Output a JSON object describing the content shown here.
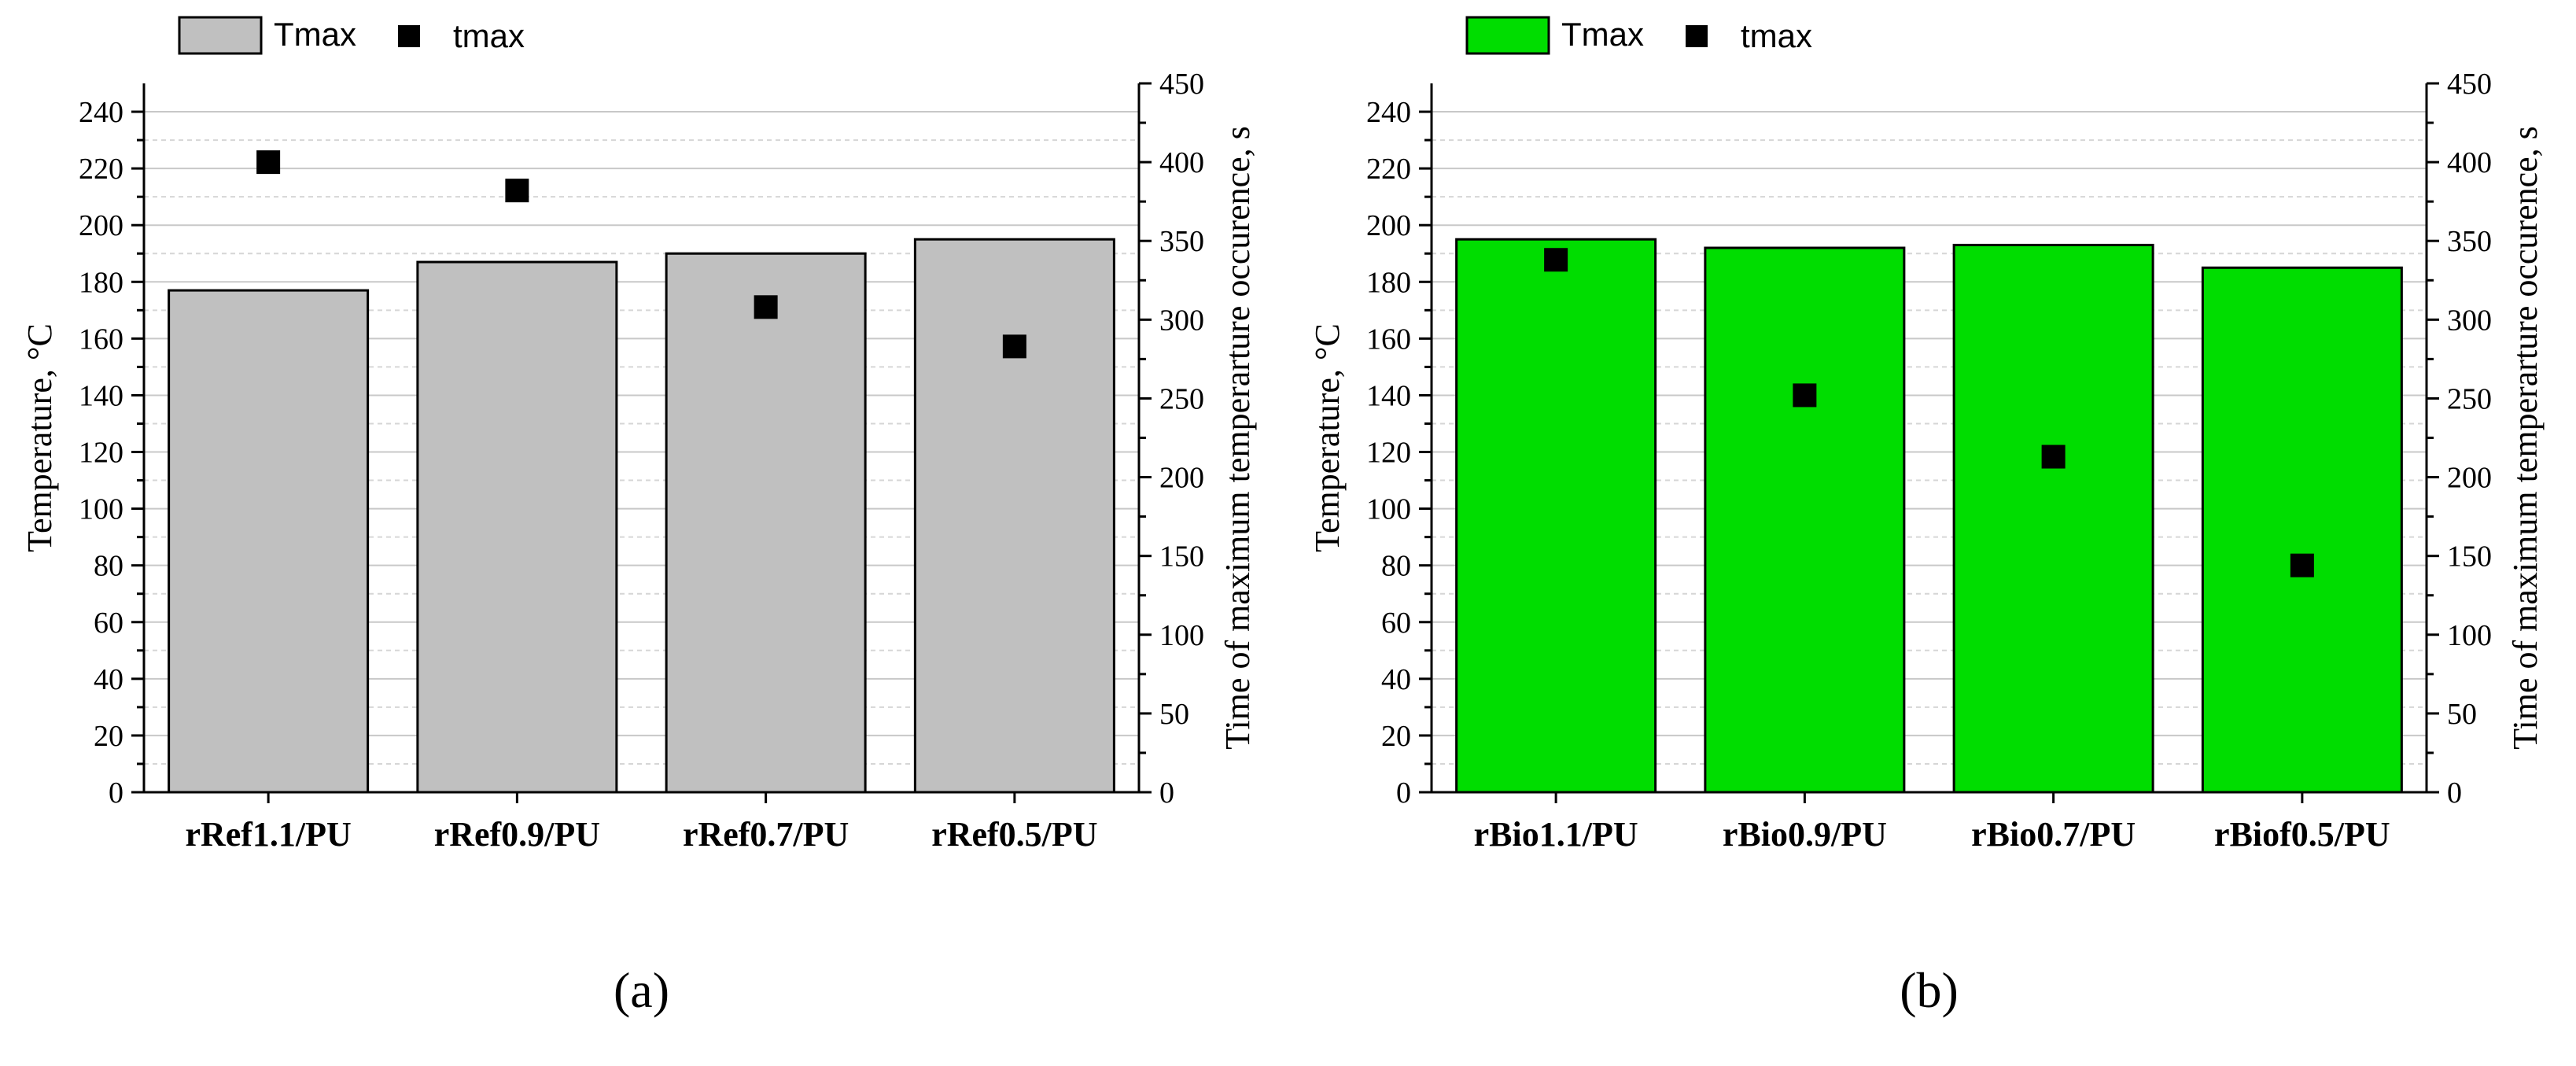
{
  "chart_data": [
    {
      "type": "bar",
      "panel_label": "(a)",
      "categories": [
        "rRef1.1/PU",
        "rRef0.9/PU",
        "rRef0.7/PU",
        "rRef0.5/PU"
      ],
      "series": [
        {
          "name": "Tmax",
          "kind": "bar",
          "axis": "left",
          "color": "#c0c0c0",
          "values": [
            177,
            187,
            190,
            195
          ]
        },
        {
          "name": "tmax",
          "kind": "scatter",
          "axis": "right",
          "color": "#000000",
          "values": [
            400,
            382,
            308,
            283
          ]
        }
      ],
      "ylabel": "Temperature, °C",
      "ylim": [
        0,
        250
      ],
      "yticks": [
        0,
        20,
        40,
        60,
        80,
        100,
        120,
        140,
        160,
        180,
        200,
        220,
        240
      ],
      "y2label": "Time of maximum temperarture occurence, s",
      "y2lim": [
        0,
        450
      ],
      "y2ticks": [
        0,
        50,
        100,
        150,
        200,
        250,
        300,
        350,
        400,
        450
      ],
      "legend_position": "top-left",
      "grid": true
    },
    {
      "type": "bar",
      "panel_label": "(b)",
      "categories": [
        "rBio1.1/PU",
        "rBio0.9/PU",
        "rBio0.7/PU",
        "rBiof0.5/PU"
      ],
      "series": [
        {
          "name": "Tmax",
          "kind": "bar",
          "axis": "left",
          "color": "#00dd00",
          "values": [
            195,
            192,
            193,
            185
          ]
        },
        {
          "name": "tmax",
          "kind": "scatter",
          "axis": "right",
          "color": "#000000",
          "values": [
            338,
            252,
            213,
            144
          ]
        }
      ],
      "ylabel": "Temperature, °C",
      "ylim": [
        0,
        250
      ],
      "yticks": [
        0,
        20,
        40,
        60,
        80,
        100,
        120,
        140,
        160,
        180,
        200,
        220,
        240
      ],
      "y2label": "Time of maximum temperarture occurence, s",
      "y2lim": [
        0,
        450
      ],
      "y2ticks": [
        0,
        50,
        100,
        150,
        200,
        250,
        300,
        350,
        400,
        450
      ],
      "legend_position": "top-left",
      "grid": true
    }
  ]
}
